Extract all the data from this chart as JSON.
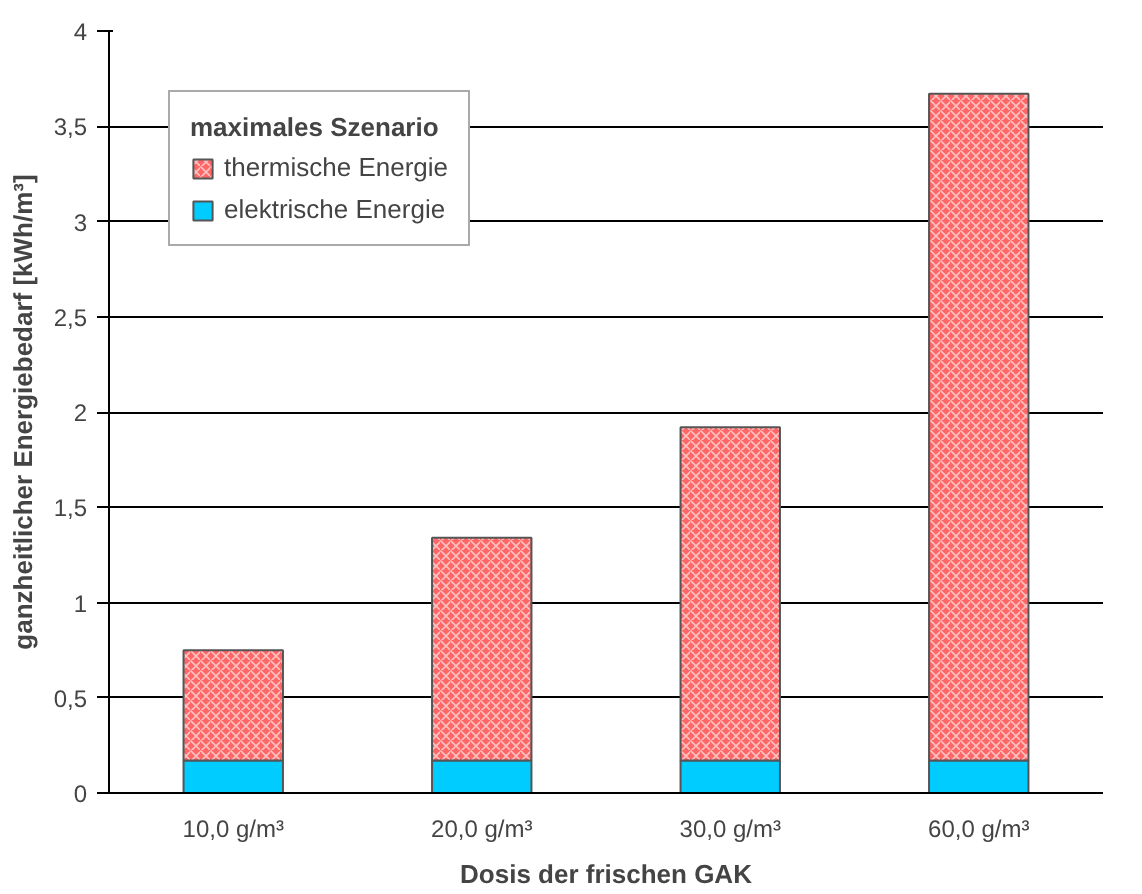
{
  "chart_data": {
    "type": "bar",
    "stacked": true,
    "xlabel": "Dosis der frischen GAK",
    "ylabel": "ganzheitlicher Energiebedarf [kWh/m³]",
    "legend_title": "maximales Szenario",
    "categories": [
      "10,0 g/m³",
      "20,0 g/m³",
      "30,0 g/m³",
      "60,0 g/m³"
    ],
    "series": [
      {
        "name": "elektrische Energie",
        "color": "#00ccff",
        "values": [
          0.17,
          0.17,
          0.17,
          0.17
        ]
      },
      {
        "name": "thermische Energie",
        "color": "#ff6666",
        "values": [
          0.58,
          1.17,
          1.75,
          3.5
        ]
      }
    ],
    "ylim": [
      0,
      4
    ],
    "yticks": [
      0,
      {
        "value": 0.5,
        "label": "0,5"
      },
      1,
      {
        "value": 1.5,
        "label": "1,5"
      },
      2,
      {
        "value": 2.5,
        "label": "2,5"
      },
      3,
      {
        "value": 3.5,
        "label": "3,5"
      },
      4
    ],
    "grid": "y",
    "legend": "top left"
  }
}
